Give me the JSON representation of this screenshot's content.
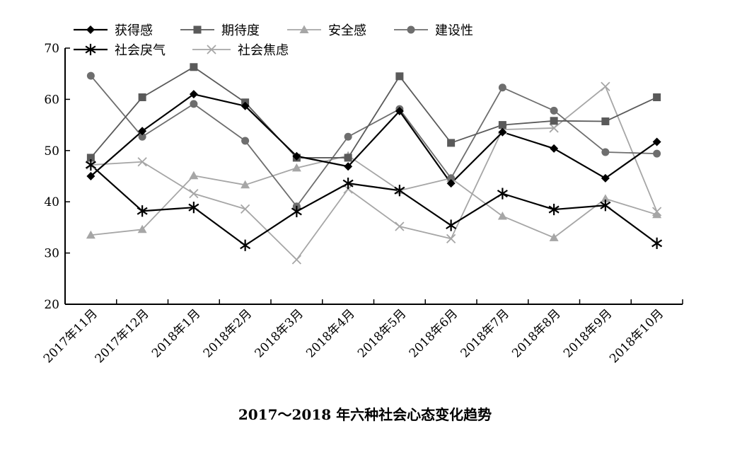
{
  "chart_data": {
    "type": "line",
    "title": "2017～2018 年六种社会心态变化趋势",
    "xlabel": "",
    "ylabel": "",
    "categories": [
      "2017年11月",
      "2017年12月",
      "2018年1月",
      "2018年2月",
      "2018年3月",
      "2018年4月",
      "2018年5月",
      "2018年6月",
      "2018年7月",
      "2018年8月",
      "2018年9月",
      "2018年10月"
    ],
    "ylim": [
      20,
      70
    ],
    "yticks": [
      20,
      30,
      40,
      50,
      60,
      70
    ],
    "grid": false,
    "legend_position": "top-left",
    "series": [
      {
        "name": "获得感",
        "marker": "diamond",
        "color": "#000000",
        "values": [
          45.0,
          53.8,
          61.0,
          58.7,
          48.9,
          46.9,
          57.7,
          43.6,
          53.6,
          50.4,
          44.6,
          51.7
        ]
      },
      {
        "name": "期待度",
        "marker": "square",
        "color": "#5a5a5a",
        "values": [
          48.6,
          60.4,
          66.3,
          59.4,
          48.6,
          48.6,
          64.5,
          51.5,
          55.0,
          55.8,
          55.7,
          60.4
        ]
      },
      {
        "name": "安全感",
        "marker": "triangle",
        "color": "#a6a6a6",
        "values": [
          33.5,
          34.6,
          45.1,
          43.3,
          46.6,
          49.0,
          42.2,
          44.6,
          37.2,
          33.0,
          40.6,
          37.5
        ]
      },
      {
        "name": "建设性",
        "marker": "circle",
        "color": "#6e6e6e",
        "values": [
          64.6,
          52.7,
          59.1,
          51.9,
          39.1,
          52.7,
          58.1,
          44.6,
          62.3,
          57.8,
          49.7,
          49.4
        ]
      },
      {
        "name": "社会戾气",
        "marker": "asterisk",
        "color": "#000000",
        "values": [
          47.2,
          38.2,
          38.9,
          31.5,
          38.1,
          43.6,
          42.2,
          35.4,
          41.6,
          38.5,
          39.3,
          31.9
        ]
      },
      {
        "name": "社会焦虑",
        "marker": "x",
        "color": "#a6a6a6",
        "values": [
          47.2,
          47.8,
          41.6,
          38.6,
          28.7,
          42.5,
          35.2,
          32.8,
          54.1,
          54.4,
          62.5,
          38.1
        ]
      }
    ]
  }
}
